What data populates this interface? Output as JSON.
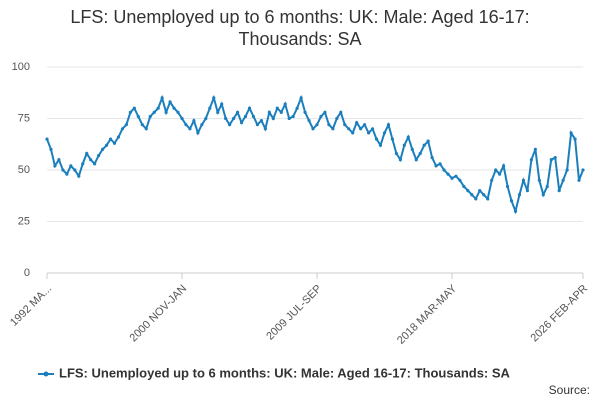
{
  "chart_data": {
    "type": "line",
    "title": "LFS: Unemployed up to 6 months: UK: Male: Aged 16-17: Thousands: SA",
    "source": "Source:",
    "categories": [
      "1992 MA...",
      null,
      null,
      null,
      null,
      null,
      null,
      null,
      null,
      null,
      null,
      null,
      null,
      null,
      null,
      null,
      null,
      null,
      null,
      null,
      null,
      null,
      null,
      null,
      null,
      null,
      null,
      null,
      null,
      null,
      null,
      null,
      null,
      null,
      "2000 NOV-JAN",
      null,
      null,
      null,
      null,
      null,
      null,
      null,
      null,
      null,
      null,
      null,
      null,
      null,
      null,
      null,
      null,
      null,
      null,
      null,
      null,
      null,
      null,
      null,
      null,
      null,
      null,
      null,
      null,
      null,
      null,
      null,
      null,
      null,
      "2009 JUL-SEP",
      null,
      null,
      null,
      null,
      null,
      null,
      null,
      null,
      null,
      null,
      null,
      null,
      null,
      null,
      null,
      null,
      null,
      null,
      null,
      null,
      null,
      null,
      null,
      null,
      null,
      null,
      null,
      null,
      null,
      null,
      null,
      null,
      null,
      "2018 MAR-MAY",
      null,
      null,
      null,
      null,
      null,
      null,
      null,
      null,
      null,
      null,
      null,
      null,
      null,
      null,
      null,
      null,
      null,
      null,
      null,
      null,
      null,
      null,
      null,
      null,
      null,
      null,
      null,
      null,
      null,
      null,
      null,
      null,
      "2026 FEB-APR"
    ],
    "series": [
      {
        "name": "LFS: Unemployed up to 6 months: UK: Male: Aged 16-17: Thousands: SA",
        "color": "#1b7fbd",
        "values": [
          65,
          60,
          52,
          55,
          50,
          48,
          52,
          50,
          47,
          53,
          58,
          55,
          53,
          57,
          60,
          62,
          65,
          63,
          66,
          70,
          72,
          78,
          80,
          76,
          72,
          70,
          76,
          78,
          80,
          85,
          78,
          83,
          80,
          78,
          75,
          72,
          70,
          74,
          68,
          72,
          75,
          80,
          85,
          78,
          82,
          75,
          72,
          75,
          78,
          73,
          76,
          80,
          76,
          72,
          74,
          70,
          78,
          75,
          80,
          78,
          82,
          75,
          76,
          80,
          85,
          78,
          74,
          70,
          72,
          76,
          78,
          72,
          70,
          75,
          78,
          72,
          70,
          68,
          73,
          70,
          72,
          68,
          70,
          65,
          62,
          68,
          72,
          65,
          58,
          55,
          62,
          66,
          60,
          55,
          58,
          62,
          64,
          56,
          52,
          53,
          50,
          48,
          46,
          47,
          45,
          42,
          40,
          38,
          36,
          40,
          38,
          36,
          45,
          50,
          48,
          52,
          42,
          35,
          30,
          38,
          45,
          40,
          55,
          60,
          45,
          38,
          42,
          55,
          56,
          40,
          45,
          50,
          68,
          65,
          45,
          50
        ]
      }
    ],
    "ylim": [
      0,
      100
    ],
    "yticks": [
      0,
      25,
      50,
      75,
      100
    ],
    "grid": true
  }
}
